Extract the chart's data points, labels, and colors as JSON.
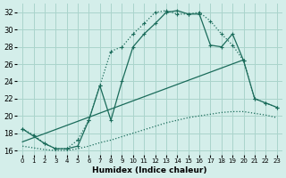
{
  "xlabel": "Humidex (Indice chaleur)",
  "bg_color": "#d4eeea",
  "grid_color": "#aad4cc",
  "line_color": "#1a6b5a",
  "xlim": [
    -0.5,
    23.5
  ],
  "ylim": [
    15.5,
    33.0
  ],
  "yticks": [
    16,
    18,
    20,
    22,
    24,
    26,
    28,
    30,
    32
  ],
  "xticks": [
    0,
    1,
    2,
    3,
    4,
    5,
    6,
    7,
    8,
    9,
    10,
    11,
    12,
    13,
    14,
    15,
    16,
    17,
    18,
    19,
    20,
    21,
    22,
    23
  ],
  "curve1_x": [
    0,
    1,
    2,
    3,
    4,
    5,
    6,
    7,
    8,
    9,
    10,
    11,
    12,
    13,
    14,
    15,
    16,
    17,
    18,
    19,
    20,
    21,
    22,
    23
  ],
  "curve1_y": [
    18.5,
    17.8,
    16.8,
    16.2,
    16.2,
    17.2,
    19.5,
    23.5,
    27.5,
    28.0,
    29.5,
    30.7,
    32.0,
    32.2,
    31.8,
    31.8,
    32.0,
    31.0,
    29.5,
    28.2,
    26.4,
    22.0,
    21.5,
    21.0
  ],
  "curve2_x": [
    0,
    2,
    3,
    4,
    5,
    6,
    7,
    8,
    9,
    10,
    11,
    12,
    13,
    14,
    15,
    16,
    17,
    18,
    19,
    20,
    21,
    22,
    23
  ],
  "curve2_y": [
    18.5,
    16.8,
    16.2,
    16.2,
    16.5,
    19.5,
    23.5,
    19.5,
    24.0,
    28.0,
    29.5,
    30.7,
    32.0,
    32.2,
    31.8,
    31.8,
    28.2,
    28.0,
    29.5,
    26.4,
    22.0,
    21.5,
    21.0
  ],
  "curve3_x": [
    0,
    20
  ],
  "curve3_y": [
    17.0,
    26.5
  ],
  "curve4_x": [
    0,
    1,
    2,
    3,
    4,
    5,
    6,
    7,
    8,
    9,
    10,
    11,
    12,
    13,
    14,
    15,
    16,
    17,
    18,
    19,
    20,
    21,
    22,
    23
  ],
  "curve4_y": [
    16.5,
    16.3,
    16.1,
    16.0,
    16.0,
    16.2,
    16.5,
    16.9,
    17.2,
    17.6,
    18.0,
    18.4,
    18.8,
    19.2,
    19.5,
    19.8,
    20.0,
    20.2,
    20.4,
    20.5,
    20.5,
    20.3,
    20.1,
    19.8
  ]
}
